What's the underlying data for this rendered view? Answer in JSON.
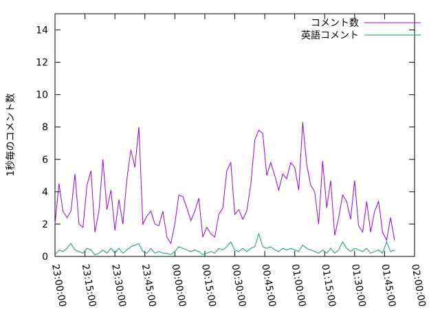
{
  "chart_data": {
    "type": "line",
    "ylabel": "1秒毎のコメント数",
    "x": [
      "23:00:00",
      "23:02:00",
      "23:04:00",
      "23:06:00",
      "23:08:00",
      "23:10:00",
      "23:12:00",
      "23:14:00",
      "23:16:00",
      "23:18:00",
      "23:20:00",
      "23:22:00",
      "23:24:00",
      "23:26:00",
      "23:28:00",
      "23:30:00",
      "23:32:00",
      "23:34:00",
      "23:36:00",
      "23:38:00",
      "23:40:00",
      "23:42:00",
      "23:44:00",
      "23:46:00",
      "23:48:00",
      "23:50:00",
      "23:52:00",
      "23:54:00",
      "23:56:00",
      "23:58:00",
      "00:00:00",
      "00:02:00",
      "00:04:00",
      "00:06:00",
      "00:08:00",
      "00:10:00",
      "00:12:00",
      "00:14:00",
      "00:16:00",
      "00:18:00",
      "00:20:00",
      "00:22:00",
      "00:24:00",
      "00:26:00",
      "00:28:00",
      "00:30:00",
      "00:32:00",
      "00:34:00",
      "00:36:00",
      "00:38:00",
      "00:40:00",
      "00:42:00",
      "00:44:00",
      "00:46:00",
      "00:48:00",
      "00:50:00",
      "00:52:00",
      "00:54:00",
      "00:56:00",
      "00:58:00",
      "01:00:00",
      "01:02:00",
      "01:04:00",
      "01:06:00",
      "01:08:00",
      "01:10:00",
      "01:12:00",
      "01:14:00",
      "01:16:00",
      "01:18:00",
      "01:20:00",
      "01:22:00",
      "01:24:00",
      "01:26:00",
      "01:28:00",
      "01:30:00",
      "01:32:00",
      "01:34:00",
      "01:36:00",
      "01:38:00",
      "01:40:00",
      "01:42:00",
      "01:44:00",
      "01:46:00",
      "01:48:00",
      "01:50:00"
    ],
    "series": [
      {
        "name": "コメント数",
        "color": "#9400d3",
        "values": [
          2.0,
          4.5,
          2.8,
          2.4,
          2.8,
          5.1,
          2.0,
          1.8,
          4.4,
          5.3,
          1.5,
          2.8,
          6.0,
          2.9,
          4.1,
          1.6,
          3.5,
          2.0,
          4.8,
          6.6,
          5.5,
          8.0,
          2.0,
          2.5,
          2.8,
          2.0,
          1.9,
          2.8,
          1.2,
          0.8,
          2.0,
          3.8,
          3.7,
          3.0,
          2.2,
          2.8,
          3.6,
          1.2,
          1.8,
          1.4,
          1.2,
          2.6,
          3.0,
          5.3,
          5.8,
          2.6,
          2.9,
          2.3,
          2.8,
          4.4,
          7.2,
          7.8,
          7.6,
          5.0,
          5.8,
          5.0,
          4.1,
          5.1,
          4.8,
          5.8,
          5.5,
          4.1,
          8.3,
          5.7,
          4.4,
          4.0,
          2.0,
          5.9,
          3.0,
          4.7,
          1.3,
          2.4,
          3.8,
          3.4,
          2.3,
          4.7,
          1.9,
          1.5,
          3.4,
          1.5,
          2.8,
          3.4,
          1.5,
          1.0,
          2.4,
          1.0
        ]
      },
      {
        "name": "英語コメント",
        "color": "#009e73",
        "values": [
          0.1,
          0.4,
          0.3,
          0.5,
          0.8,
          0.4,
          0.3,
          0.2,
          0.5,
          0.4,
          0.1,
          0.2,
          0.4,
          0.2,
          0.5,
          0.2,
          0.5,
          0.2,
          0.4,
          0.6,
          0.7,
          0.8,
          0.3,
          0.2,
          0.5,
          0.2,
          0.3,
          0.2,
          0.2,
          0.1,
          0.3,
          0.6,
          0.5,
          0.4,
          0.3,
          0.4,
          0.3,
          0.1,
          0.2,
          0.3,
          0.2,
          0.5,
          0.4,
          0.6,
          0.9,
          0.4,
          0.3,
          0.5,
          0.3,
          0.5,
          0.6,
          1.4,
          0.6,
          0.5,
          0.6,
          0.4,
          0.3,
          0.5,
          0.4,
          0.5,
          0.4,
          0.3,
          0.7,
          0.5,
          0.4,
          0.3,
          0.2,
          0.4,
          0.2,
          0.5,
          0.2,
          0.4,
          0.9,
          0.5,
          0.3,
          0.5,
          0.4,
          0.3,
          0.5,
          0.2,
          0.3,
          0.4,
          0.2,
          0.9,
          0.3,
          0.4
        ]
      }
    ],
    "xlim": [
      "23:00:00",
      "02:00:00"
    ],
    "xticks": [
      "23:00:00",
      "23:15:00",
      "23:30:00",
      "23:45:00",
      "00:00:00",
      "00:15:00",
      "00:30:00",
      "00:45:00",
      "01:00:00",
      "01:15:00",
      "01:30:00",
      "01:45:00",
      "02:00:00"
    ],
    "ylim": [
      0,
      15
    ],
    "yticks": [
      0,
      2,
      4,
      6,
      8,
      10,
      12,
      14
    ],
    "legend": "top-right",
    "grid": false
  }
}
